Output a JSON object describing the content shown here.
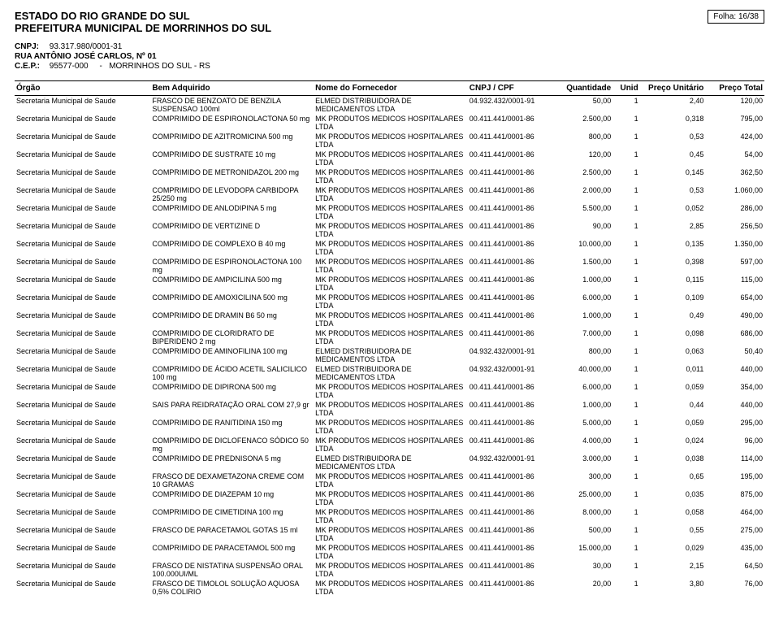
{
  "header": {
    "estado": "ESTADO DO RIO GRANDE DO SUL",
    "prefeitura": "PREFEITURA MUNICIPAL DE MORRINHOS DO SUL",
    "folha_label": "Folha:",
    "folha_value": "16/38",
    "cnpj_label": "CNPJ:",
    "cnpj_value": "93.317.980/0001-31",
    "rua": "RUA ANTÔNIO JOSÉ CARLOS, Nº 01",
    "cep_label": "C.E.P.:",
    "cep_value": "95577-000",
    "cep_dash": "-",
    "cep_city": "MORRINHOS DO SUL - RS"
  },
  "columns": {
    "orgao": "Órgão",
    "bem": "Bem Adquirido",
    "fornecedor": "Nome do Fornecedor",
    "cnpj": "CNPJ / CPF",
    "qtd": "Quantidade",
    "unid": "Unid",
    "pu": "Preço Unitário",
    "pt": "Preço Total"
  },
  "rows": [
    {
      "orgao": "Secretaria Municipal de Saude",
      "bem": "FRASCO DE BENZOATO DE BENZILA SUSPENSAO 100ml",
      "forn": "ELMED DISTRIBUIDORA DE MEDICAMENTOS LTDA",
      "cnpj": "04.932.432/0001-91",
      "qtd": "50,00",
      "unid": "1",
      "pu": "2,40",
      "pt": "120,00"
    },
    {
      "orgao": "Secretaria Municipal de Saude",
      "bem": "COMPRIMIDO DE ESPIRONOLACTONA 50 mg",
      "forn": "MK PRODUTOS MEDICOS HOSPITALARES LTDA",
      "cnpj": "00.411.441/0001-86",
      "qtd": "2.500,00",
      "unid": "1",
      "pu": "0,318",
      "pt": "795,00"
    },
    {
      "orgao": "Secretaria Municipal de Saude",
      "bem": "COMPRIMIDO DE AZITROMICINA 500 mg",
      "forn": "MK PRODUTOS MEDICOS HOSPITALARES LTDA",
      "cnpj": "00.411.441/0001-86",
      "qtd": "800,00",
      "unid": "1",
      "pu": "0,53",
      "pt": "424,00"
    },
    {
      "orgao": "Secretaria Municipal de Saude",
      "bem": "COMPRIMIDO DE SUSTRATE 10 mg",
      "forn": "MK PRODUTOS MEDICOS HOSPITALARES LTDA",
      "cnpj": "00.411.441/0001-86",
      "qtd": "120,00",
      "unid": "1",
      "pu": "0,45",
      "pt": "54,00"
    },
    {
      "orgao": "Secretaria Municipal de Saude",
      "bem": "COMPRIMIDO DE METRONIDAZOL 200 mg",
      "forn": "MK PRODUTOS MEDICOS HOSPITALARES LTDA",
      "cnpj": "00.411.441/0001-86",
      "qtd": "2.500,00",
      "unid": "1",
      "pu": "0,145",
      "pt": "362,50"
    },
    {
      "orgao": "Secretaria Municipal de Saude",
      "bem": "COMPRIMIDO DE LEVODOPA CARBIDOPA 25/250 mg",
      "forn": "MK PRODUTOS MEDICOS HOSPITALARES LTDA",
      "cnpj": "00.411.441/0001-86",
      "qtd": "2.000,00",
      "unid": "1",
      "pu": "0,53",
      "pt": "1.060,00"
    },
    {
      "orgao": "Secretaria Municipal de Saude",
      "bem": "COMPRIMIDO DE ANLODIPINA 5 mg",
      "forn": "MK PRODUTOS MEDICOS HOSPITALARES LTDA",
      "cnpj": "00.411.441/0001-86",
      "qtd": "5.500,00",
      "unid": "1",
      "pu": "0,052",
      "pt": "286,00"
    },
    {
      "orgao": "Secretaria Municipal de Saude",
      "bem": "COMPRIMIDO DE VERTIZINE D",
      "forn": "MK PRODUTOS MEDICOS HOSPITALARES LTDA",
      "cnpj": "00.411.441/0001-86",
      "qtd": "90,00",
      "unid": "1",
      "pu": "2,85",
      "pt": "256,50"
    },
    {
      "orgao": "Secretaria Municipal de Saude",
      "bem": "COMPRIMIDO DE COMPLEXO B 40 mg",
      "forn": "MK PRODUTOS MEDICOS HOSPITALARES LTDA",
      "cnpj": "00.411.441/0001-86",
      "qtd": "10.000,00",
      "unid": "1",
      "pu": "0,135",
      "pt": "1.350,00"
    },
    {
      "orgao": "Secretaria Municipal de Saude",
      "bem": "COMPRIMIDO DE ESPIRONOLACTONA 100 mg",
      "forn": "MK PRODUTOS MEDICOS HOSPITALARES LTDA",
      "cnpj": "00.411.441/0001-86",
      "qtd": "1.500,00",
      "unid": "1",
      "pu": "0,398",
      "pt": "597,00"
    },
    {
      "orgao": "Secretaria Municipal de Saude",
      "bem": "COMPRIMIDO DE AMPICILINA 500 mg",
      "forn": "MK PRODUTOS MEDICOS HOSPITALARES LTDA",
      "cnpj": "00.411.441/0001-86",
      "qtd": "1.000,00",
      "unid": "1",
      "pu": "0,115",
      "pt": "115,00"
    },
    {
      "orgao": "Secretaria Municipal de Saude",
      "bem": "COMPRIMIDO DE AMOXICILINA 500 mg",
      "forn": "MK PRODUTOS MEDICOS HOSPITALARES LTDA",
      "cnpj": "00.411.441/0001-86",
      "qtd": "6.000,00",
      "unid": "1",
      "pu": "0,109",
      "pt": "654,00"
    },
    {
      "orgao": "Secretaria Municipal de Saude",
      "bem": "COMPRIMIDO DE DRAMIN B6 50 mg",
      "forn": "MK PRODUTOS MEDICOS HOSPITALARES LTDA",
      "cnpj": "00.411.441/0001-86",
      "qtd": "1.000,00",
      "unid": "1",
      "pu": "0,49",
      "pt": "490,00"
    },
    {
      "orgao": "Secretaria Municipal de Saude",
      "bem": "COMPRIMIDO DE CLORIDRATO DE BIPERIDENO 2 mg",
      "forn": "MK PRODUTOS MEDICOS HOSPITALARES LTDA",
      "cnpj": "00.411.441/0001-86",
      "qtd": "7.000,00",
      "unid": "1",
      "pu": "0,098",
      "pt": "686,00"
    },
    {
      "orgao": "Secretaria Municipal de Saude",
      "bem": "COMPRIMIDO DE AMINOFILINA 100 mg",
      "forn": "ELMED DISTRIBUIDORA DE MEDICAMENTOS LTDA",
      "cnpj": "04.932.432/0001-91",
      "qtd": "800,00",
      "unid": "1",
      "pu": "0,063",
      "pt": "50,40"
    },
    {
      "orgao": "Secretaria Municipal de Saude",
      "bem": "COMPRIMIDO DE ÁCIDO ACETIL SALICILICO 100 mg",
      "forn": "ELMED DISTRIBUIDORA DE MEDICAMENTOS LTDA",
      "cnpj": "04.932.432/0001-91",
      "qtd": "40.000,00",
      "unid": "1",
      "pu": "0,011",
      "pt": "440,00"
    },
    {
      "orgao": "Secretaria Municipal de Saude",
      "bem": "COMPRIMIDO DE DIPIRONA 500 mg",
      "forn": "MK PRODUTOS MEDICOS HOSPITALARES LTDA",
      "cnpj": "00.411.441/0001-86",
      "qtd": "6.000,00",
      "unid": "1",
      "pu": "0,059",
      "pt": "354,00"
    },
    {
      "orgao": "Secretaria Municipal de Saude",
      "bem": "SAIS PARA REIDRATAÇÃO ORAL COM 27,9 gr",
      "forn": "MK PRODUTOS MEDICOS HOSPITALARES LTDA",
      "cnpj": "00.411.441/0001-86",
      "qtd": "1.000,00",
      "unid": "1",
      "pu": "0,44",
      "pt": "440,00"
    },
    {
      "orgao": "Secretaria Municipal de Saude",
      "bem": "COMPRIMIDO DE RANITIDINA 150 mg",
      "forn": "MK PRODUTOS MEDICOS HOSPITALARES LTDA",
      "cnpj": "00.411.441/0001-86",
      "qtd": "5.000,00",
      "unid": "1",
      "pu": "0,059",
      "pt": "295,00"
    },
    {
      "orgao": "Secretaria Municipal de Saude",
      "bem": "COMPRIMIDO DE DICLOFENACO SÓDICO 50 mg",
      "forn": "MK PRODUTOS MEDICOS HOSPITALARES LTDA",
      "cnpj": "00.411.441/0001-86",
      "qtd": "4.000,00",
      "unid": "1",
      "pu": "0,024",
      "pt": "96,00"
    },
    {
      "orgao": "Secretaria Municipal de Saude",
      "bem": "COMPRIMIDO DE PREDNISONA 5 mg",
      "forn": "ELMED DISTRIBUIDORA DE MEDICAMENTOS LTDA",
      "cnpj": "04.932.432/0001-91",
      "qtd": "3.000,00",
      "unid": "1",
      "pu": "0,038",
      "pt": "114,00"
    },
    {
      "orgao": "Secretaria Municipal de Saude",
      "bem": "FRASCO DE DEXAMETAZONA CREME COM 10 GRAMAS",
      "forn": "MK PRODUTOS MEDICOS HOSPITALARES LTDA",
      "cnpj": "00.411.441/0001-86",
      "qtd": "300,00",
      "unid": "1",
      "pu": "0,65",
      "pt": "195,00"
    },
    {
      "orgao": "Secretaria Municipal de Saude",
      "bem": "COMPRIMIDO DE DIAZEPAM 10 mg",
      "forn": "MK PRODUTOS MEDICOS HOSPITALARES LTDA",
      "cnpj": "00.411.441/0001-86",
      "qtd": "25.000,00",
      "unid": "1",
      "pu": "0,035",
      "pt": "875,00"
    },
    {
      "orgao": "Secretaria Municipal de Saude",
      "bem": "COMPRIMIDO DE CIMETIDINA 100 mg",
      "forn": "MK PRODUTOS MEDICOS HOSPITALARES LTDA",
      "cnpj": "00.411.441/0001-86",
      "qtd": "8.000,00",
      "unid": "1",
      "pu": "0,058",
      "pt": "464,00"
    },
    {
      "orgao": "Secretaria Municipal de Saude",
      "bem": "FRASCO DE PARACETAMOL GOTAS 15 ml",
      "forn": "MK PRODUTOS MEDICOS HOSPITALARES LTDA",
      "cnpj": "00.411.441/0001-86",
      "qtd": "500,00",
      "unid": "1",
      "pu": "0,55",
      "pt": "275,00"
    },
    {
      "orgao": "Secretaria Municipal de Saude",
      "bem": "COMPRIMIDO DE PARACETAMOL 500 mg",
      "forn": "MK PRODUTOS MEDICOS HOSPITALARES LTDA",
      "cnpj": "00.411.441/0001-86",
      "qtd": "15.000,00",
      "unid": "1",
      "pu": "0,029",
      "pt": "435,00"
    },
    {
      "orgao": "Secretaria Municipal de Saude",
      "bem": "FRASCO DE NISTATINA SUSPENSÃO ORAL 100.000UI/ML",
      "forn": "MK PRODUTOS MEDICOS HOSPITALARES LTDA",
      "cnpj": "00.411.441/0001-86",
      "qtd": "30,00",
      "unid": "1",
      "pu": "2,15",
      "pt": "64,50"
    },
    {
      "orgao": "Secretaria Municipal de Saude",
      "bem": "FRASCO DE TIMOLOL SOLUÇÃO AQUOSA 0,5% COLIRIO",
      "forn": "MK PRODUTOS MEDICOS HOSPITALARES LTDA",
      "cnpj": "00.411.441/0001-86",
      "qtd": "20,00",
      "unid": "1",
      "pu": "3,80",
      "pt": "76,00"
    }
  ]
}
